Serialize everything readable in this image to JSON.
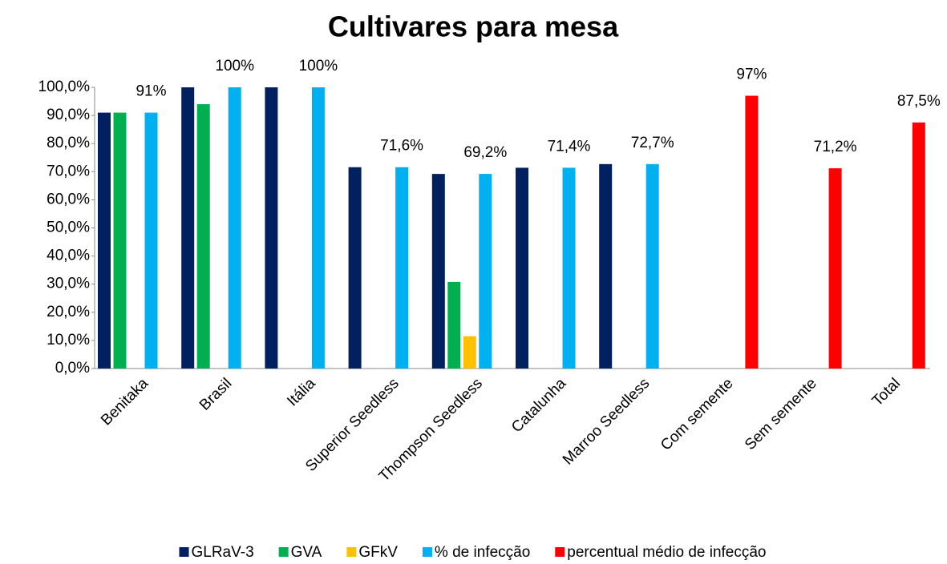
{
  "chart_data": {
    "type": "bar",
    "title": "Cultivares para mesa",
    "categories": [
      "Benitaka",
      "Brasil",
      "Itália",
      "Superior Seedless",
      "Thompson Seedless",
      "Catalunha",
      "Marroo Seedless",
      "Com semente",
      "Sem semente",
      "Total"
    ],
    "series": [
      {
        "name": "GLRaV-3",
        "color": "#002060",
        "values": [
          91,
          100,
          100,
          71.6,
          69.2,
          71.4,
          72.7,
          null,
          null,
          null
        ]
      },
      {
        "name": "GVA",
        "color": "#00b050",
        "values": [
          91,
          94,
          null,
          null,
          30.8,
          null,
          null,
          null,
          null,
          null
        ]
      },
      {
        "name": "GFkV",
        "color": "#ffc000",
        "values": [
          null,
          null,
          null,
          null,
          11.5,
          null,
          null,
          null,
          null,
          null
        ]
      },
      {
        "name": "% de infecção",
        "color": "#00b0f0",
        "values": [
          91,
          100,
          100,
          71.6,
          69.2,
          71.4,
          72.7,
          null,
          null,
          null
        ],
        "value_labels": [
          "91%",
          "100%",
          "100%",
          "71,6%",
          "69,2%",
          "71,4%",
          "72,7%",
          null,
          null,
          null
        ]
      },
      {
        "name": "percentual médio de infecção",
        "color": "#ff0000",
        "values": [
          null,
          null,
          null,
          null,
          null,
          null,
          null,
          97,
          71.2,
          87.5
        ],
        "value_labels": [
          null,
          null,
          null,
          null,
          null,
          null,
          null,
          "97%",
          "71,2%",
          "87,5%"
        ]
      }
    ],
    "ylim": [
      0,
      100
    ],
    "yticks": [
      {
        "value": 0,
        "label": "0,0%"
      },
      {
        "value": 10,
        "label": "10,0%"
      },
      {
        "value": 20,
        "label": "20,0%"
      },
      {
        "value": 30,
        "label": "30,0%"
      },
      {
        "value": 40,
        "label": "40,0%"
      },
      {
        "value": 50,
        "label": "50,0%"
      },
      {
        "value": 60,
        "label": "60,0%"
      },
      {
        "value": 70,
        "label": "70,0%"
      },
      {
        "value": 80,
        "label": "80,0%"
      },
      {
        "value": 90,
        "label": "90,0%"
      },
      {
        "value": 100,
        "label": "100,0%"
      }
    ],
    "legend": "bottom",
    "grid": false
  }
}
